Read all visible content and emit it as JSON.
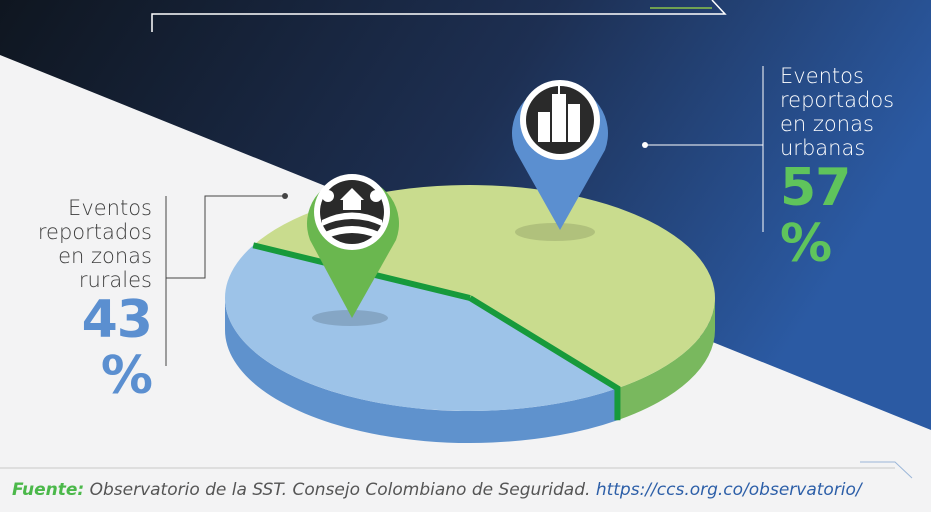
{
  "chart_data": {
    "type": "pie",
    "categories": [
      "Eventos reportados en zonas urbanas",
      "Eventos reportados en zonas rurales"
    ],
    "values": [
      57,
      43
    ],
    "value_labels": [
      "57 %",
      "43 %"
    ],
    "colors": [
      "#c9dc8e",
      "#9dc3e8"
    ]
  },
  "footer": {
    "label": "Fuente:",
    "text": "Observatorio de la SST. Consejo Colombiano de Seguridad.",
    "link": "https://ccs.org.co/observatorio/"
  }
}
